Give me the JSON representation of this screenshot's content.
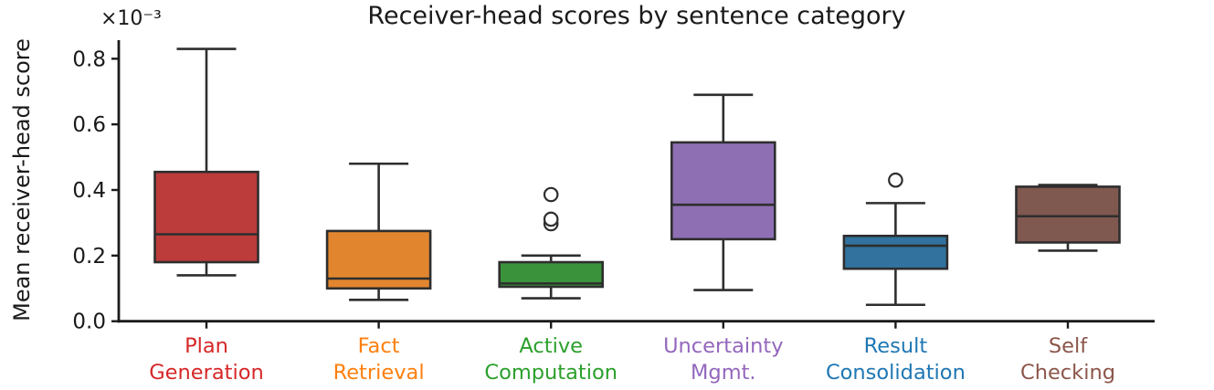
{
  "chart_data": {
    "type": "boxplot",
    "title": "Receiver-head scores by sentence category",
    "ylabel": "Mean receiver-head score",
    "y_offset_text": "×10⁻³",
    "unit_scale": "1e-3",
    "grid": false,
    "y_ticks": [
      {
        "label": "0.0",
        "value": 0.0
      },
      {
        "label": "0.2",
        "value": 0.2
      },
      {
        "label": "0.4",
        "value": 0.4
      },
      {
        "label": "0.6",
        "value": 0.6
      },
      {
        "label": "0.8",
        "value": 0.8
      }
    ],
    "ylim": [
      0,
      0.856
    ],
    "categories": [
      {
        "name": "plan-generation",
        "label_lines": [
          "Plan",
          "Generation"
        ],
        "label_color": "#d62728",
        "box_color": "#bc3c3c",
        "whislo": 0.14,
        "q1": 0.18,
        "med": 0.265,
        "q3": 0.455,
        "whishi": 0.83,
        "outliers": []
      },
      {
        "name": "fact-retrieval",
        "label_lines": [
          "Fact",
          "Retrieval"
        ],
        "label_color": "#ff7f0e",
        "box_color": "#e1862f",
        "whislo": 0.065,
        "q1": 0.1,
        "med": 0.13,
        "q3": 0.275,
        "whishi": 0.48,
        "outliers": []
      },
      {
        "name": "active-computation",
        "label_lines": [
          "Active",
          "Computation"
        ],
        "label_color": "#2ca02c",
        "box_color": "#3a923a",
        "whislo": 0.07,
        "q1": 0.105,
        "med": 0.115,
        "q3": 0.18,
        "whishi": 0.2,
        "outliers": [
          0.297,
          0.311,
          0.386
        ]
      },
      {
        "name": "uncertainty-mgmt",
        "label_lines": [
          "Uncertainty",
          "Mgmt."
        ],
        "label_color": "#9467bd",
        "box_color": "#8e6fb4",
        "whislo": 0.095,
        "q1": 0.25,
        "med": 0.355,
        "q3": 0.545,
        "whishi": 0.69,
        "outliers": []
      },
      {
        "name": "result-consolidation",
        "label_lines": [
          "Result",
          "Consolidation"
        ],
        "label_color": "#1f77b4",
        "box_color": "#31739e",
        "whislo": 0.05,
        "q1": 0.16,
        "med": 0.23,
        "q3": 0.26,
        "whishi": 0.36,
        "outliers": [
          0.43
        ]
      },
      {
        "name": "self-checking",
        "label_lines": [
          "Self",
          "Checking"
        ],
        "label_color": "#8c564b",
        "box_color": "#7f5850",
        "whislo": 0.215,
        "q1": 0.24,
        "med": 0.32,
        "q3": 0.41,
        "whishi": 0.415,
        "outliers": []
      }
    ]
  },
  "colors": {
    "edge": "#2e2e2e",
    "spine": "#1a1a1a",
    "tick_label": "#1a1a1a",
    "background": "#ffffff"
  }
}
